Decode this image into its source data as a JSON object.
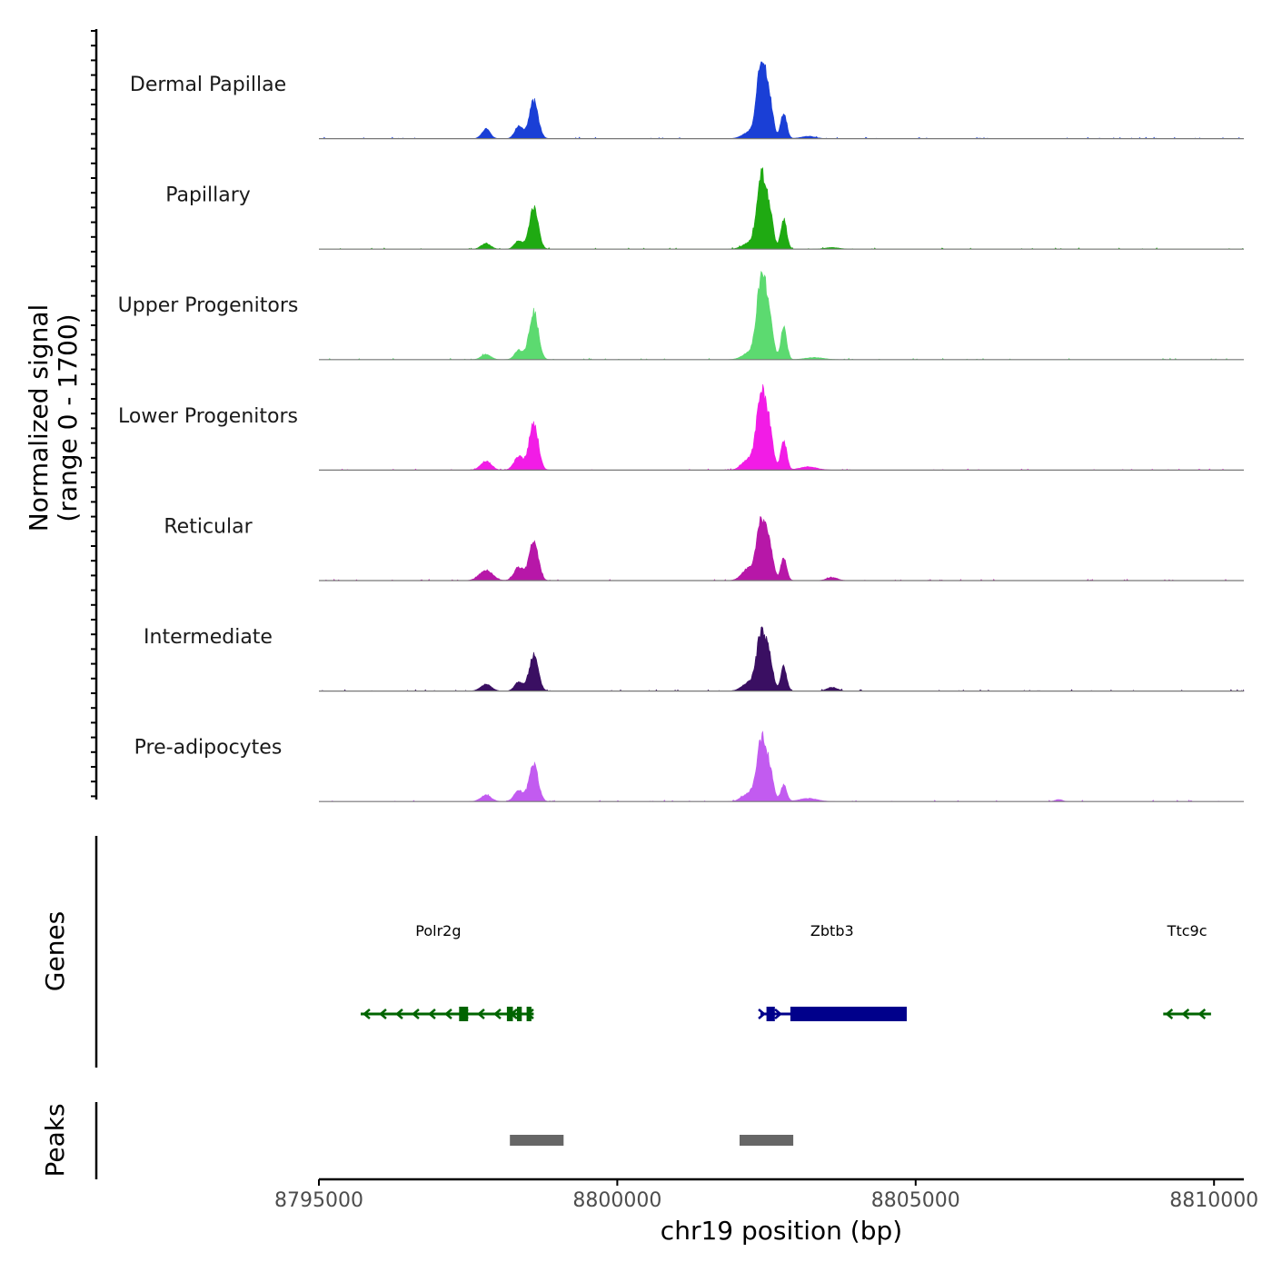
{
  "chart_data": {
    "type": "area",
    "chromosome": "chr19",
    "xlabel": "chr19 position (bp)",
    "xlim": [
      8795000,
      8810500
    ],
    "x_ticks": [
      8795000,
      8800000,
      8805000,
      8810000
    ],
    "x_tick_labels": [
      "8795000",
      "8800000",
      "8805000",
      "8810000"
    ],
    "coverage_ylabel_line1": "Normalized signal",
    "coverage_ylabel_line2": "(range 0 - 1700)",
    "ylim": [
      0,
      1700
    ],
    "tracks": [
      {
        "name": "Dermal Papillae",
        "color": "#1A3FD6",
        "peaks": [
          {
            "center": 8797800,
            "sd": 70,
            "height": 180
          },
          {
            "center": 8798350,
            "sd": 70,
            "height": 230
          },
          {
            "center": 8798600,
            "sd": 75,
            "height": 720
          },
          {
            "center": 8802200,
            "sd": 110,
            "height": 110
          },
          {
            "center": 8802420,
            "sd": 80,
            "height": 1450
          },
          {
            "center": 8802560,
            "sd": 60,
            "height": 520
          },
          {
            "center": 8802790,
            "sd": 50,
            "height": 500
          },
          {
            "center": 8803200,
            "sd": 120,
            "height": 45
          }
        ]
      },
      {
        "name": "Papillary",
        "color": "#1FAA12",
        "peaks": [
          {
            "center": 8797800,
            "sd": 80,
            "height": 110
          },
          {
            "center": 8798350,
            "sd": 70,
            "height": 160
          },
          {
            "center": 8798600,
            "sd": 75,
            "height": 780
          },
          {
            "center": 8802200,
            "sd": 110,
            "height": 110
          },
          {
            "center": 8802420,
            "sd": 80,
            "height": 1370
          },
          {
            "center": 8802560,
            "sd": 60,
            "height": 520
          },
          {
            "center": 8802790,
            "sd": 50,
            "height": 560
          },
          {
            "center": 8803600,
            "sd": 120,
            "height": 30
          }
        ]
      },
      {
        "name": "Upper Progenitors",
        "color": "#5CDA70",
        "peaks": [
          {
            "center": 8797800,
            "sd": 80,
            "height": 100
          },
          {
            "center": 8798350,
            "sd": 70,
            "height": 180
          },
          {
            "center": 8798600,
            "sd": 75,
            "height": 920
          },
          {
            "center": 8802200,
            "sd": 110,
            "height": 120
          },
          {
            "center": 8802420,
            "sd": 80,
            "height": 1620
          },
          {
            "center": 8802560,
            "sd": 60,
            "height": 600
          },
          {
            "center": 8802790,
            "sd": 50,
            "height": 600
          },
          {
            "center": 8803300,
            "sd": 150,
            "height": 40
          }
        ]
      },
      {
        "name": "Lower Progenitors",
        "color": "#F21CE6",
        "peaks": [
          {
            "center": 8797800,
            "sd": 90,
            "height": 170
          },
          {
            "center": 8798350,
            "sd": 80,
            "height": 260
          },
          {
            "center": 8798600,
            "sd": 75,
            "height": 900
          },
          {
            "center": 8802200,
            "sd": 110,
            "height": 200
          },
          {
            "center": 8802420,
            "sd": 80,
            "height": 1500
          },
          {
            "center": 8802560,
            "sd": 60,
            "height": 600
          },
          {
            "center": 8802790,
            "sd": 50,
            "height": 560
          },
          {
            "center": 8803200,
            "sd": 150,
            "height": 60
          }
        ]
      },
      {
        "name": "Reticular",
        "color": "#B717A8",
        "peaks": [
          {
            "center": 8797800,
            "sd": 110,
            "height": 200
          },
          {
            "center": 8798350,
            "sd": 80,
            "height": 260
          },
          {
            "center": 8798600,
            "sd": 75,
            "height": 780
          },
          {
            "center": 8802200,
            "sd": 110,
            "height": 220
          },
          {
            "center": 8802420,
            "sd": 80,
            "height": 1150
          },
          {
            "center": 8802560,
            "sd": 60,
            "height": 500
          },
          {
            "center": 8802790,
            "sd": 50,
            "height": 420
          },
          {
            "center": 8803600,
            "sd": 90,
            "height": 60
          }
        ]
      },
      {
        "name": "Intermediate",
        "color": "#3A0F62",
        "peaks": [
          {
            "center": 8797800,
            "sd": 90,
            "height": 130
          },
          {
            "center": 8798350,
            "sd": 70,
            "height": 180
          },
          {
            "center": 8798600,
            "sd": 75,
            "height": 700
          },
          {
            "center": 8802200,
            "sd": 110,
            "height": 160
          },
          {
            "center": 8802420,
            "sd": 80,
            "height": 1150
          },
          {
            "center": 8802560,
            "sd": 60,
            "height": 440
          },
          {
            "center": 8802790,
            "sd": 50,
            "height": 460
          },
          {
            "center": 8803600,
            "sd": 90,
            "height": 70
          }
        ]
      },
      {
        "name": "Pre-adipocytes",
        "color": "#C25BF0",
        "peaks": [
          {
            "center": 8797800,
            "sd": 90,
            "height": 120
          },
          {
            "center": 8798350,
            "sd": 80,
            "height": 200
          },
          {
            "center": 8798600,
            "sd": 75,
            "height": 700
          },
          {
            "center": 8802200,
            "sd": 110,
            "height": 150
          },
          {
            "center": 8802420,
            "sd": 80,
            "height": 1150
          },
          {
            "center": 8802560,
            "sd": 60,
            "height": 480
          },
          {
            "center": 8802790,
            "sd": 50,
            "height": 320
          },
          {
            "center": 8803200,
            "sd": 150,
            "height": 60
          },
          {
            "center": 8807400,
            "sd": 60,
            "height": 40
          }
        ]
      }
    ],
    "genes_label": "Genes",
    "genes": [
      {
        "name": "Polr2g",
        "strand": "-",
        "color": "#006400",
        "start": 8795700,
        "end": 8798600,
        "label_pos": 8797000,
        "exons": [
          [
            8797350,
            8797500
          ],
          [
            8798150,
            8798250
          ],
          [
            8798320,
            8798400
          ],
          [
            8798480,
            8798560
          ]
        ]
      },
      {
        "name": "Zbtb3",
        "strand": "+",
        "color": "#00008B",
        "start": 8802400,
        "end": 8804850,
        "label_pos": 8803600,
        "exons": [
          [
            8802500,
            8802640
          ],
          [
            8802900,
            8804850
          ]
        ]
      },
      {
        "name": "Ttc9c",
        "strand": "-",
        "color": "#006400",
        "start": 8809150,
        "end": 8809950,
        "label_pos": 8809550,
        "exons": []
      }
    ],
    "peaks_label": "Peaks",
    "peak_regions": [
      [
        8798200,
        8799100
      ],
      [
        8802050,
        8802950
      ]
    ],
    "colors": {
      "peak_bar": "#666666",
      "baseline": "#777777",
      "axis": "#000000"
    }
  }
}
